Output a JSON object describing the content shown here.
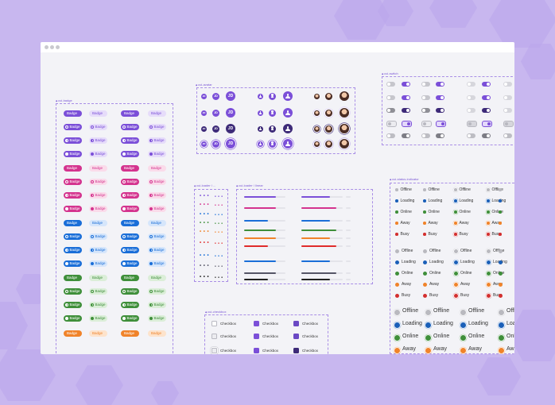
{
  "window": {
    "dots": [
      "dot",
      "dot",
      "dot"
    ]
  },
  "frames": {
    "badge": "cui-badge",
    "avatar": "cui-avatar",
    "switch": "cui-switch",
    "loader_dots": "cui-loader / ...",
    "loader_linear": "cui-loader / linear",
    "status": "cui-status-indicator",
    "checkbox": "cui-checkbox"
  },
  "badge": {
    "label": "Badge",
    "colors": [
      {
        "name": "purple",
        "main": "#7b4fd8",
        "soft": "#e6dcfa"
      },
      {
        "name": "pink",
        "main": "#d4338e",
        "soft": "#fadbea"
      },
      {
        "name": "blue",
        "main": "#1a6ed8",
        "soft": "#d6e6fb"
      },
      {
        "name": "green",
        "main": "#3f8f3a",
        "soft": "#dbeed8"
      },
      {
        "name": "orange",
        "main": "#f0832a",
        "soft": "#fde3cc"
      }
    ]
  },
  "avatar": {
    "initials": "JD",
    "color": "#7b4fd8",
    "dark": "#3d2a78"
  },
  "switch": {
    "on": "#7b4fd8",
    "off": "#c6c6cc"
  },
  "loader_dots": {
    "glyph": "• • •",
    "colors": [
      "#7b4fd8",
      "#d4338e",
      "#1a6ed8",
      "#3f8f3a",
      "#f0832a",
      "#e02b2b",
      "#1a6ed8",
      "#555566",
      "#222222"
    ]
  },
  "loader_linear": {
    "colors": [
      "#7b4fd8",
      "#d4338e",
      "#1a6ed8",
      "#3f8f3a",
      "#f0832a",
      "#e02b2b",
      "#1a6ed8",
      "#555566",
      "#222222"
    ]
  },
  "status": {
    "items": [
      {
        "label": "Offline",
        "color": "#b9b9bf"
      },
      {
        "label": "Loading",
        "color": "#1a5fb8"
      },
      {
        "label": "Online",
        "color": "#3f8f3a"
      },
      {
        "label": "Away",
        "color": "#f0832a"
      },
      {
        "label": "Busy",
        "color": "#d32f2f"
      }
    ]
  },
  "checkbox": {
    "label": "Checkbox",
    "color": "#7b4fd8"
  }
}
